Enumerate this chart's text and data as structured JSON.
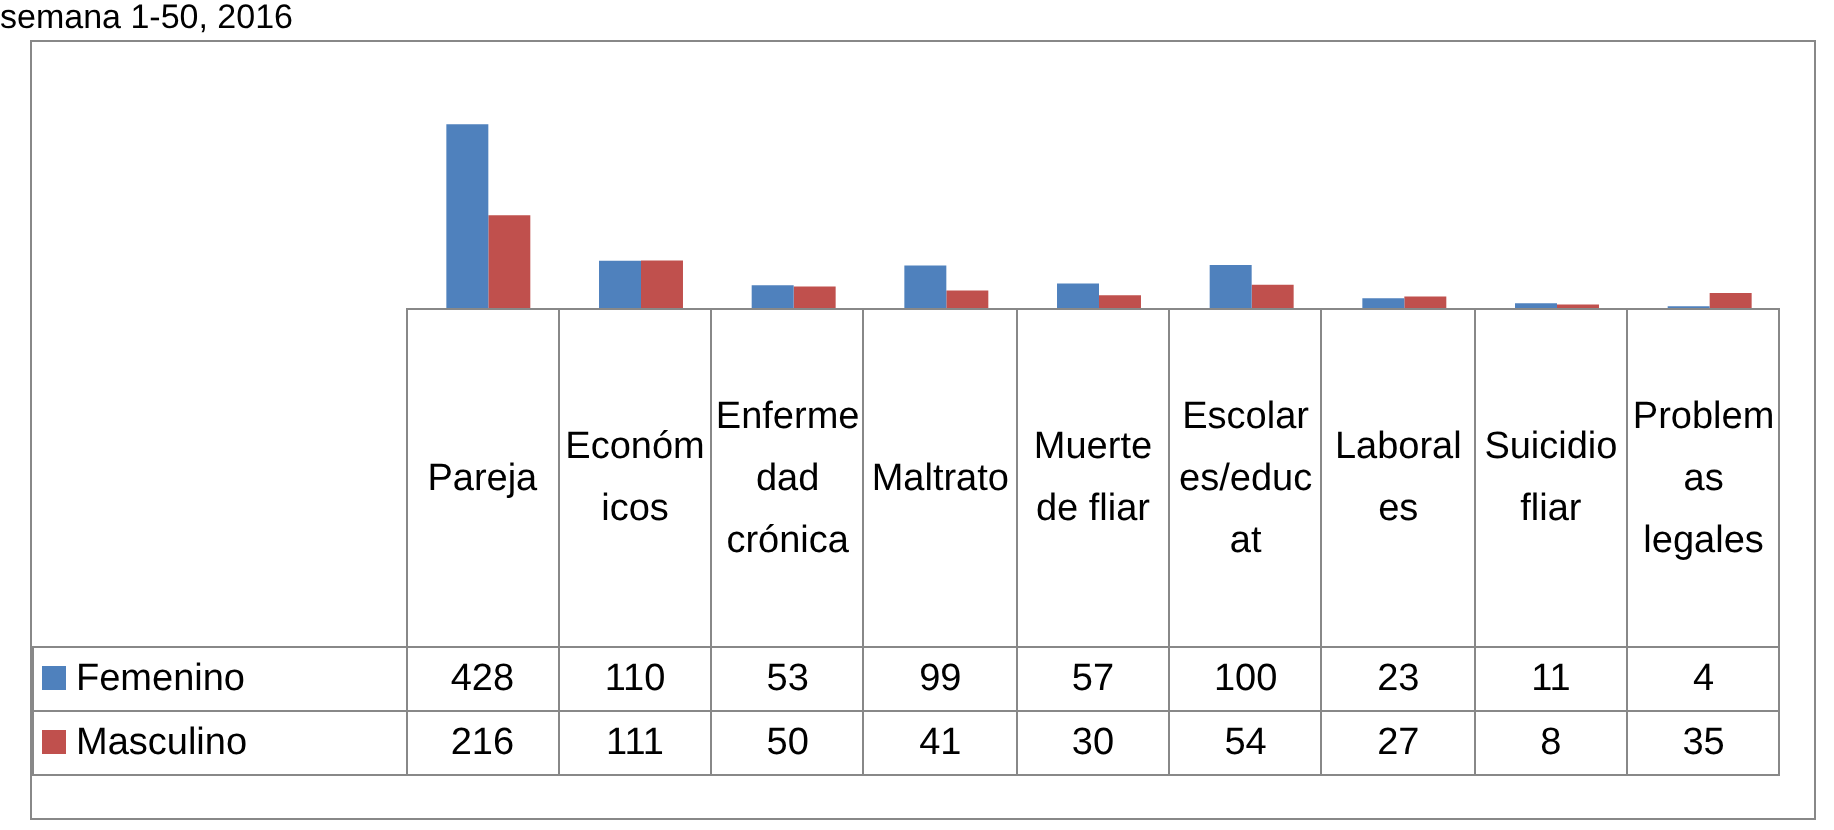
{
  "chart_data": {
    "type": "bar",
    "title": "semana 1-50, 2016",
    "categories": [
      "Pareja",
      "Económicos",
      "Enfermedad crónica",
      "Maltrato",
      "Muerte de fliar",
      "Escolares/educat",
      "Laborales",
      "Suicidio fliar",
      "Problemas legales"
    ],
    "series": [
      {
        "name": "Femenino",
        "color": "#4f81bd",
        "values": [
          428,
          110,
          53,
          99,
          57,
          100,
          23,
          11,
          4
        ]
      },
      {
        "name": "Masculino",
        "color": "#c0504d",
        "values": [
          216,
          111,
          50,
          41,
          30,
          54,
          27,
          8,
          35
        ]
      }
    ],
    "ylim": [
      0,
      620
    ],
    "legend": "bottom left",
    "data_labels": true,
    "tick_labels": false
  }
}
